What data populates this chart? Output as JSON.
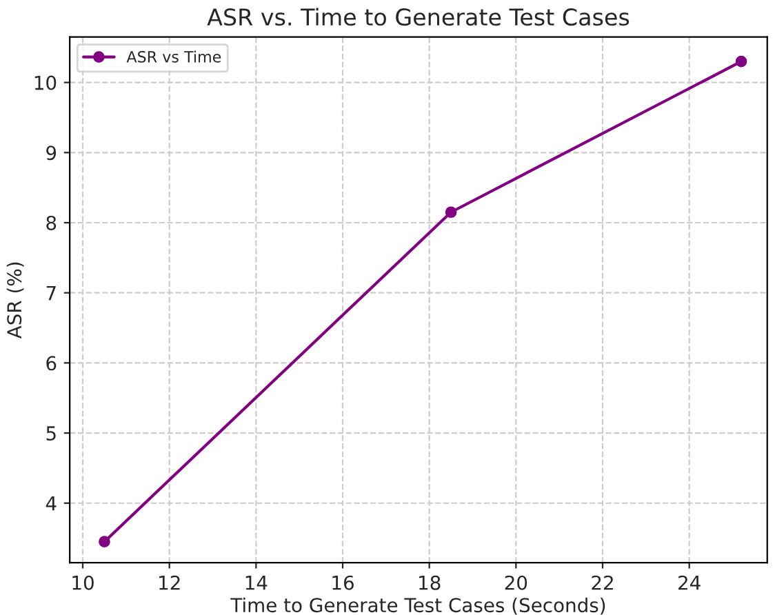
{
  "chart_data": {
    "type": "line",
    "title": "ASR vs. Time to Generate Test Cases",
    "xlabel": "Time to Generate Test Cases (Seconds)",
    "ylabel": "ASR (%)",
    "x": [
      10.5,
      18.5,
      25.2
    ],
    "series": [
      {
        "name": "ASR vs Time",
        "color": "#800080",
        "values": [
          3.45,
          8.15,
          10.3
        ]
      }
    ],
    "xlim": [
      9.7,
      25.8
    ],
    "xticks": [
      10,
      12,
      14,
      16,
      18,
      20,
      22,
      24
    ],
    "ylim": [
      3.15,
      10.65
    ],
    "yticks": [
      4,
      5,
      6,
      7,
      8,
      9,
      10
    ],
    "grid": true,
    "legend": "top left",
    "marker": "circle",
    "line_style": "solid"
  }
}
